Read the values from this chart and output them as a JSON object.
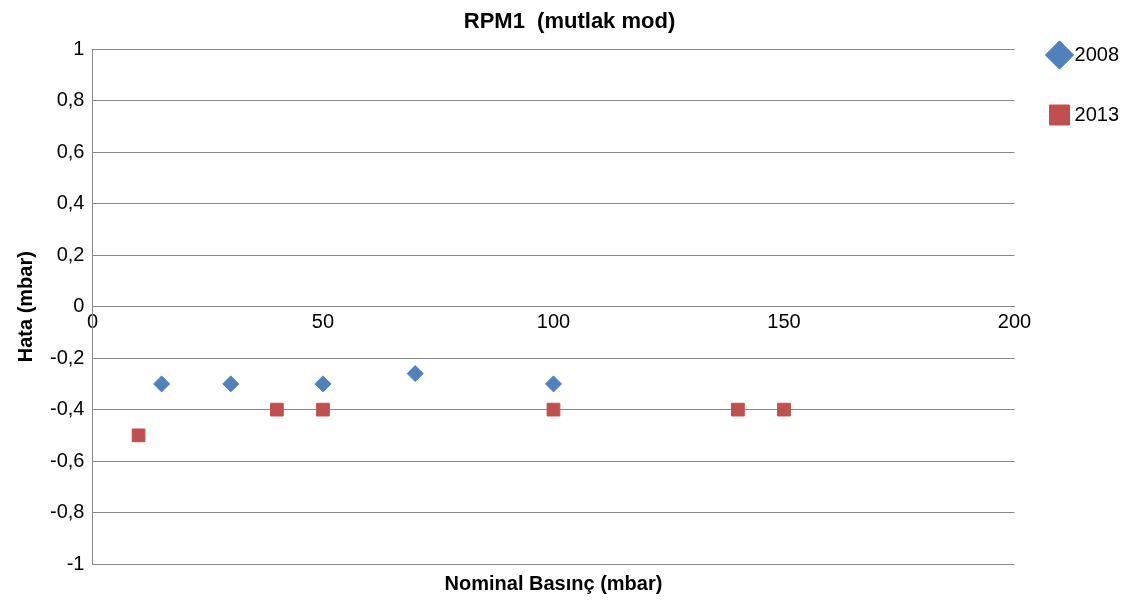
{
  "chart_data": {
    "type": "scatter",
    "title": "RPM1  (mutlak mod)",
    "xlabel": "Nominal Basınç (mbar)",
    "ylabel": "Hata (mbar)",
    "xlim": [
      0,
      200
    ],
    "xticks": [
      0,
      50,
      100,
      150,
      200
    ],
    "ylim": [
      -1,
      1
    ],
    "yticks": [
      {
        "value": -1,
        "label": "-1"
      },
      {
        "value": -0.8,
        "label": "-0,8"
      },
      {
        "value": -0.6,
        "label": "-0,6"
      },
      {
        "value": -0.4,
        "label": "-0,4"
      },
      {
        "value": -0.2,
        "label": "-0,2"
      },
      0,
      {
        "value": 0.2,
        "label": "0,2"
      },
      {
        "value": 0.4,
        "label": "0,4"
      },
      {
        "value": 0.6,
        "label": "0,6"
      },
      {
        "value": 0.8,
        "label": "0,8"
      },
      1
    ],
    "grid": "y",
    "legend": "right",
    "series": [
      {
        "name": "2008",
        "color": "#4f81bd",
        "marker": "diamond",
        "x": [
          15,
          30,
          50,
          70,
          100
        ],
        "values": [
          -0.3,
          -0.3,
          -0.3,
          -0.26,
          -0.3
        ]
      },
      {
        "name": "2013",
        "color": "#c0504d",
        "marker": "square",
        "x": [
          10,
          40,
          50,
          100,
          140,
          150
        ],
        "values": [
          -0.5,
          -0.4,
          -0.4,
          -0.4,
          -0.4,
          -0.4
        ]
      }
    ]
  }
}
